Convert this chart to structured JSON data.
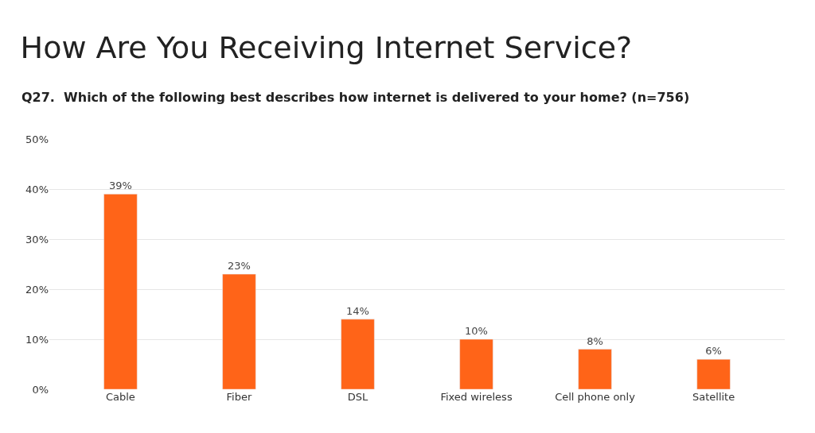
{
  "chart_data": {
    "type": "bar",
    "title": "How Are You Receiving Internet Service?",
    "subtitle": "Q27.  Which of the following best describes how internet is delivered to your home? (n=756)",
    "categories": [
      "Cable",
      "Fiber",
      "DSL",
      "Fixed wireless",
      "Cell phone only",
      "Satellite"
    ],
    "values": [
      39,
      23,
      14,
      10,
      8,
      6
    ],
    "color": "#ff6418",
    "ylim": [
      0,
      50
    ],
    "yticks": [
      {
        "value": 0,
        "label": "0%"
      },
      {
        "value": 10,
        "label": "10%"
      },
      {
        "value": 20,
        "label": "20%"
      },
      {
        "value": 30,
        "label": "30%"
      },
      {
        "value": 40,
        "label": "40%"
      },
      {
        "value": 50,
        "label": "50%"
      }
    ],
    "value_labels": [
      "39%",
      "23%",
      "14%",
      "10%",
      "8%",
      "6%"
    ],
    "grid": "y",
    "legend": false
  }
}
